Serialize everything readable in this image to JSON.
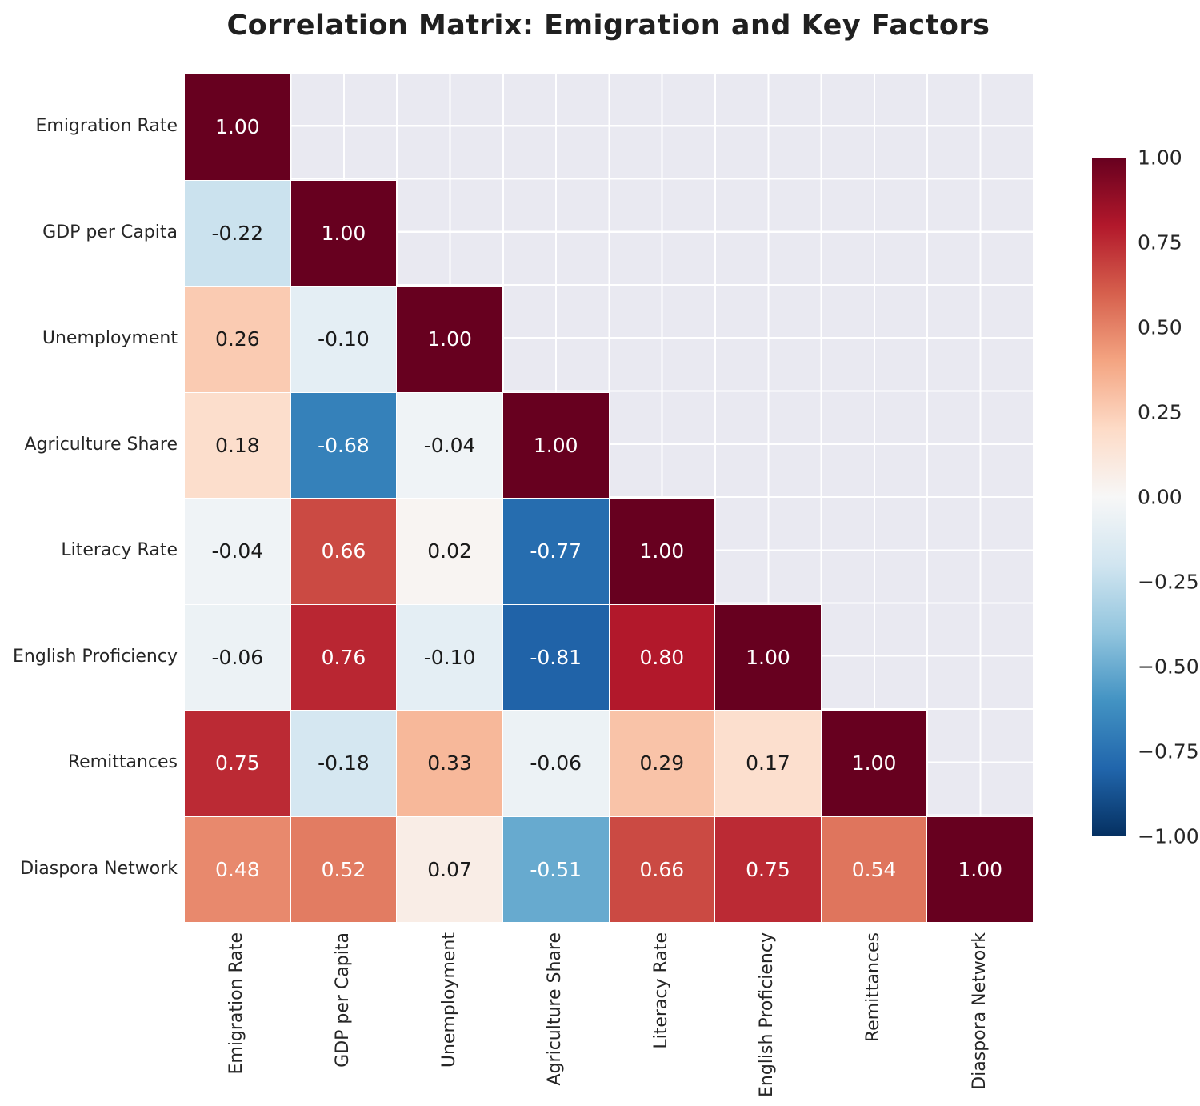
{
  "title": "Correlation Matrix: Emigration and Key Factors",
  "colors": {
    "figure_background": "#ffffff",
    "panel_background": "#e9e9f1",
    "grid_line": "#ffffff",
    "title_text": "#202020",
    "axis_label_text": "#262626",
    "annotation_dark": "#1a1a1a",
    "annotation_light": "#ffffff"
  },
  "chart_data": {
    "type": "heatmap",
    "title": "Correlation Matrix: Emigration and Key Factors",
    "mask": "upper-triangle-hidden",
    "grid": true,
    "variables": [
      "Emigration Rate",
      "GDP per Capita",
      "Unemployment",
      "Agriculture Share",
      "Literacy Rate",
      "English Proficiency",
      "Remittances",
      "Diaspora Network"
    ],
    "matrix": [
      [
        1.0,
        null,
        null,
        null,
        null,
        null,
        null,
        null
      ],
      [
        -0.22,
        1.0,
        null,
        null,
        null,
        null,
        null,
        null
      ],
      [
        0.26,
        -0.1,
        1.0,
        null,
        null,
        null,
        null,
        null
      ],
      [
        0.18,
        -0.68,
        -0.04,
        1.0,
        null,
        null,
        null,
        null
      ],
      [
        -0.04,
        0.66,
        0.02,
        -0.77,
        1.0,
        null,
        null,
        null
      ],
      [
        -0.06,
        0.76,
        -0.1,
        -0.81,
        0.8,
        1.0,
        null,
        null
      ],
      [
        0.75,
        -0.18,
        0.33,
        -0.06,
        0.29,
        0.17,
        1.0,
        null
      ],
      [
        0.48,
        0.52,
        0.07,
        -0.51,
        0.66,
        0.75,
        0.54,
        1.0
      ]
    ],
    "cell_labels": [
      [
        "1.00"
      ],
      [
        "-0.22",
        "1.00"
      ],
      [
        "0.26",
        "-0.10",
        "1.00"
      ],
      [
        "0.18",
        "-0.68",
        "-0.04",
        "1.00"
      ],
      [
        "-0.04",
        "0.66",
        "0.02",
        "-0.77",
        "1.00"
      ],
      [
        "-0.06",
        "0.76",
        "-0.10",
        "-0.81",
        "0.80",
        "1.00"
      ],
      [
        "0.75",
        "-0.18",
        "0.33",
        "-0.06",
        "0.29",
        "0.17",
        "1.00"
      ],
      [
        "0.48",
        "0.52",
        "0.07",
        "-0.51",
        "0.66",
        "0.75",
        "0.54",
        "1.00"
      ]
    ],
    "vmin": -1,
    "vmax": 1,
    "colormap": {
      "name": "RdBu_r",
      "anchors": [
        "#053061",
        "#2166ac",
        "#4393c3",
        "#92c5de",
        "#d1e5f0",
        "#f7f7f7",
        "#fddbc7",
        "#f4a582",
        "#d6604d",
        "#b2182b",
        "#67001f"
      ]
    },
    "colorbar": {
      "position": "right",
      "tick_labels": [
        "1.00",
        "0.75",
        "0.50",
        "0.25",
        "0.00",
        "−0.25",
        "−0.50",
        "−0.75",
        "−1.00"
      ],
      "tick_values": [
        1.0,
        0.75,
        0.5,
        0.25,
        0.0,
        -0.25,
        -0.5,
        -0.75,
        -1.0
      ]
    }
  }
}
